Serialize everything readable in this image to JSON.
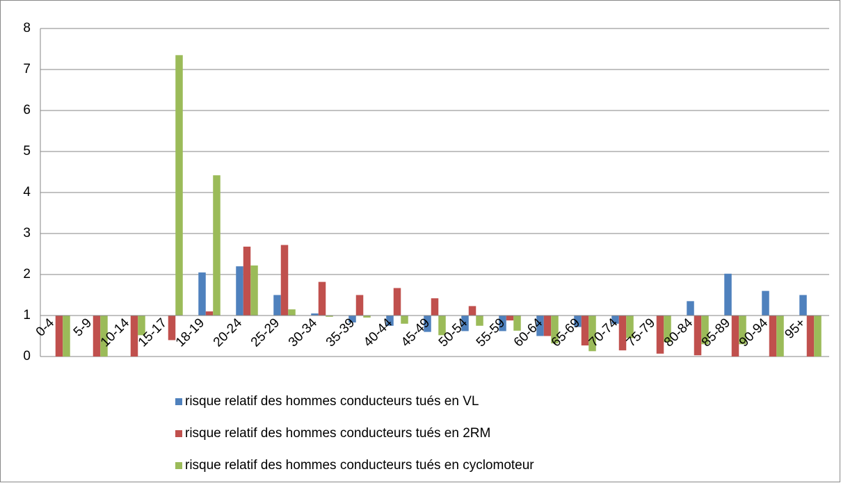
{
  "chart_data": {
    "type": "bar",
    "categories": [
      "0-4",
      "5-9",
      "10-14",
      "15-17",
      "18-19",
      "20-24",
      "25-29",
      "30-34",
      "35-39",
      "40-44",
      "45-49",
      "50-54",
      "55-59",
      "60-64",
      "65-69",
      "70-74",
      "75-79",
      "80-84",
      "85-89",
      "90-94",
      "95+"
    ],
    "series": [
      {
        "name": "risque relatif des hommes conducteurs tués en VL",
        "color": "#4f81bd",
        "values": [
          null,
          null,
          null,
          null,
          2.05,
          2.2,
          1.5,
          1.05,
          0.83,
          0.75,
          0.6,
          0.62,
          0.62,
          0.5,
          0.72,
          0.8,
          1,
          1.35,
          2.02,
          1.6,
          1.5
        ]
      },
      {
        "name": "risque relatif des hommes conducteurs tués en 2RM",
        "color": "#c0504d",
        "values": [
          0,
          0,
          0,
          0.4,
          1.1,
          2.68,
          2.72,
          1.82,
          1.5,
          1.67,
          1.42,
          1.23,
          0.88,
          0.5,
          0.27,
          0.15,
          0.07,
          0.03,
          0,
          0,
          0
        ]
      },
      {
        "name": "risque relatif des hommes conducteurs tués en cyclomoteur",
        "color": "#9bbb59",
        "values": [
          0,
          0,
          0.52,
          7.35,
          4.42,
          2.22,
          1.15,
          0.97,
          0.95,
          0.8,
          0.52,
          0.75,
          0.63,
          0.32,
          0.13,
          0.45,
          0.35,
          0.3,
          0.3,
          0,
          0
        ]
      }
    ],
    "bar_base": 1,
    "ylim": [
      0,
      8
    ],
    "yticks": [
      0,
      1,
      2,
      3,
      4,
      5,
      6,
      7,
      8
    ],
    "grid": true,
    "legend": "bottom"
  }
}
